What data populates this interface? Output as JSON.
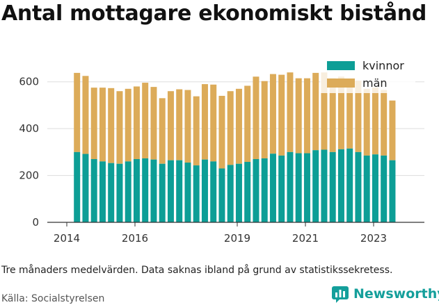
{
  "title": "Antal mottagare ekonomiskt bistånd",
  "footnote": "Tre månaders medelvärden. Data saknas ibland på grund av statistikssekretess.",
  "source": "Källa: Socialstyrelsen",
  "brand": {
    "name": "Newsworthy",
    "icon": "newsworthy-logo-icon",
    "color": "#149f9b"
  },
  "colors": {
    "kvinnor": "#0d9e96",
    "man": "#dcab59",
    "grid": "#dddddd"
  },
  "chart_data": {
    "type": "bar",
    "stacked": true,
    "ylim": [
      0,
      700
    ],
    "y_ticks": [
      0,
      200,
      400,
      600
    ],
    "x_ticks": [
      {
        "label": "2014",
        "value": 2014.0
      },
      {
        "label": "2016",
        "value": 2016.0
      },
      {
        "label": "2019",
        "value": 2019.0
      },
      {
        "label": "2021",
        "value": 2021.0
      },
      {
        "label": "2023",
        "value": 2023.0
      }
    ],
    "legend_position": "top-right",
    "grid": "horizontal",
    "x": [
      2014.3,
      2014.55,
      2014.8,
      2015.05,
      2015.3,
      2015.55,
      2015.8,
      2016.05,
      2016.3,
      2016.55,
      2016.8,
      2017.05,
      2017.3,
      2017.55,
      2017.8,
      2018.05,
      2018.3,
      2018.55,
      2018.8,
      2019.05,
      2019.3,
      2019.55,
      2019.8,
      2020.05,
      2020.3,
      2020.55,
      2020.8,
      2021.05,
      2021.3,
      2021.55,
      2021.8,
      2022.05,
      2022.3,
      2022.55,
      2022.8,
      2023.05,
      2023.3,
      2023.55
    ],
    "series": [
      {
        "name": "kvinnor",
        "values": [
          300,
          292,
          270,
          260,
          253,
          250,
          260,
          270,
          273,
          268,
          250,
          265,
          265,
          255,
          243,
          268,
          260,
          230,
          245,
          250,
          258,
          270,
          273,
          293,
          285,
          300,
          295,
          295,
          308,
          310,
          300,
          312,
          315,
          300,
          285,
          290,
          285,
          265
        ]
      },
      {
        "name": "män",
        "values": [
          338,
          333,
          305,
          315,
          320,
          310,
          310,
          310,
          323,
          310,
          280,
          295,
          303,
          310,
          295,
          322,
          328,
          310,
          315,
          320,
          325,
          352,
          330,
          340,
          345,
          340,
          320,
          320,
          330,
          330,
          315,
          310,
          290,
          305,
          285,
          285,
          280,
          255
        ]
      }
    ]
  }
}
